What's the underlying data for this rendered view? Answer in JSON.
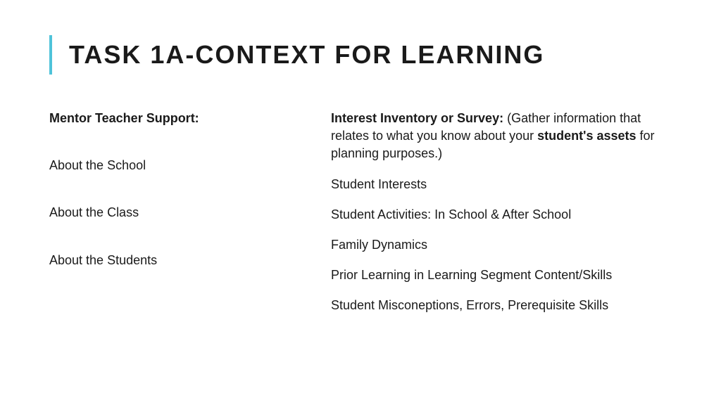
{
  "title": "TASK 1A-CONTEXT FOR LEARNING",
  "accent_color": "#4fc3d9",
  "background_color": "#ffffff",
  "text_color": "#1a1a1a",
  "title_fontsize": 36,
  "body_fontsize": 18,
  "left_column": {
    "heading": "Mentor Teacher Support:",
    "items": [
      "About the School",
      "About the Class",
      "About the Students"
    ]
  },
  "right_column": {
    "heading_bold": "Interest Inventory or Survey: ",
    "heading_rest_1": "(Gather information that relates to what you know about your ",
    "heading_bold_2": "student's assets",
    "heading_rest_2": " for planning purposes.)",
    "items": [
      "Student Interests",
      "Student Activities: In School & After School",
      "Family Dynamics",
      "Prior Learning in Learning Segment Content/Skills",
      "Student Misconeptions, Errors, Prerequisite Skills"
    ]
  }
}
